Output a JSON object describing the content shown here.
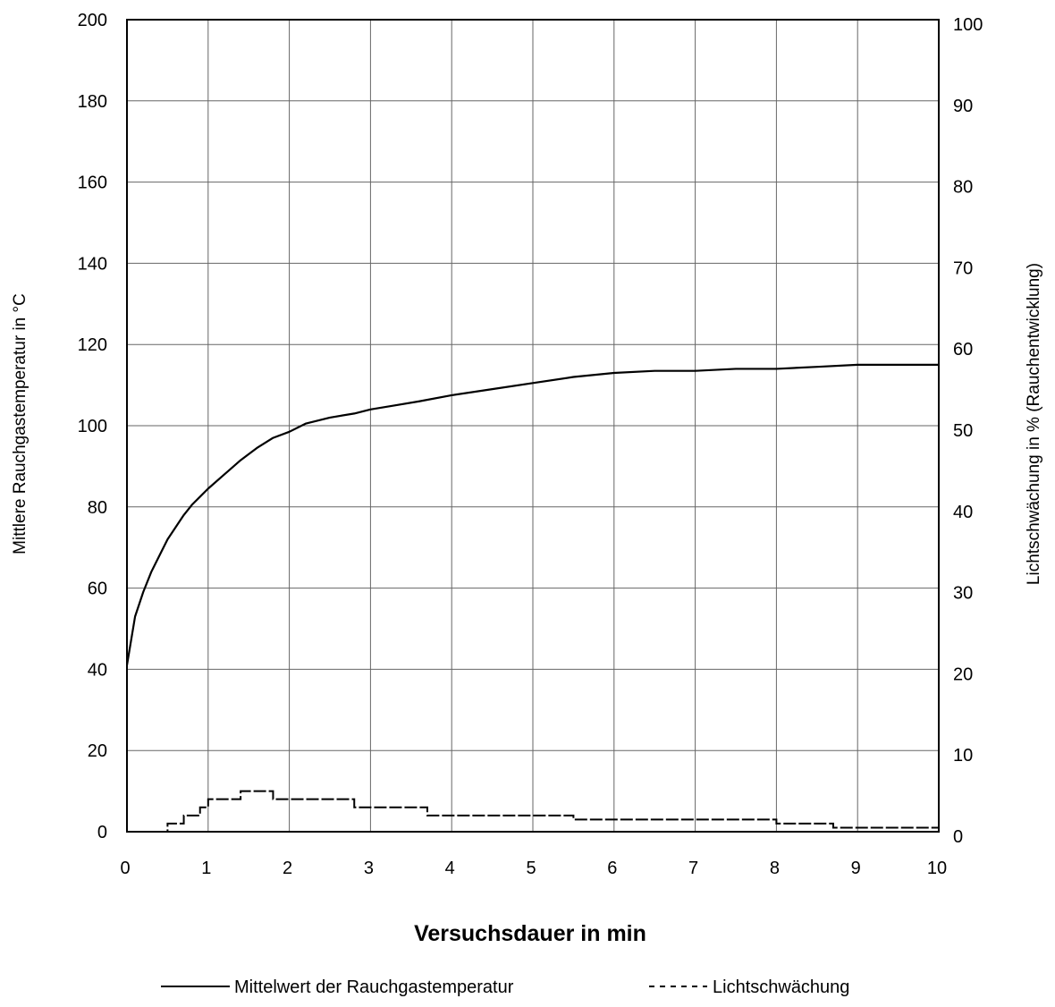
{
  "chart_data": {
    "type": "line",
    "xlabel": "Versuchsdauer in min",
    "ylabel_left": "Mittlere Rauchgastemperatur in °C",
    "ylabel_right": "Lichtschwächung in % (Rauchentwicklung)",
    "xlim": [
      0,
      10
    ],
    "ylim_left": [
      0,
      200
    ],
    "ylim_right": [
      0,
      100
    ],
    "x_ticks": [
      "0",
      "1",
      "2",
      "3",
      "4",
      "5",
      "6",
      "7",
      "8",
      "9",
      "10"
    ],
    "y_left_ticks": [
      "0",
      "20",
      "40",
      "60",
      "80",
      "100",
      "120",
      "140",
      "160",
      "180",
      "200"
    ],
    "y_right_ticks": [
      "0",
      "10",
      "20",
      "30",
      "40",
      "50",
      "60",
      "70",
      "80",
      "90",
      "100"
    ],
    "grid": true,
    "legend_position": "bottom-center",
    "series": [
      {
        "name": "Mittelwert der Rauchgastemperatur",
        "axis": "left",
        "style": "solid",
        "x": [
          0,
          0.1,
          0.2,
          0.3,
          0.4,
          0.5,
          0.6,
          0.7,
          0.8,
          0.9,
          1.0,
          1.2,
          1.4,
          1.6,
          1.8,
          2.0,
          2.2,
          2.5,
          2.8,
          3.0,
          3.3,
          3.6,
          4.0,
          4.5,
          5.0,
          5.5,
          6.0,
          6.5,
          7.0,
          7.5,
          8.0,
          8.5,
          9.0,
          9.5,
          10.0
        ],
        "y": [
          41,
          53,
          59,
          64,
          68,
          72,
          75,
          78,
          80.5,
          82.5,
          84.5,
          88,
          91.5,
          94.5,
          97,
          98.5,
          100.5,
          102,
          103,
          104,
          105,
          106,
          107.5,
          109,
          110.5,
          112,
          113,
          113.5,
          113.5,
          114,
          114,
          114.5,
          115,
          115,
          115
        ]
      },
      {
        "name": "Lichtschwächung",
        "axis": "right",
        "style": "dashed",
        "x": [
          0,
          0.4,
          0.5,
          0.6,
          0.7,
          0.8,
          0.9,
          1.0,
          1.2,
          1.4,
          1.6,
          1.8,
          2.0,
          2.4,
          2.7,
          2.8,
          3.0,
          3.3,
          3.6,
          3.7,
          3.9,
          4.0,
          4.2,
          4.5,
          5.0,
          5.5,
          6.0,
          6.4,
          6.8,
          7.0,
          7.3,
          7.6,
          8.0,
          8.4,
          8.6,
          8.7,
          9.0,
          9.5,
          10.0
        ],
        "y": [
          0,
          0,
          1,
          1,
          2,
          2,
          3,
          4,
          4,
          5,
          5,
          4,
          4,
          4,
          4,
          3,
          3,
          3,
          3,
          2,
          2,
          2,
          2,
          2,
          2,
          1.5,
          1.5,
          1.5,
          1.5,
          1.5,
          1.5,
          1.5,
          1,
          1,
          1,
          0.5,
          0.5,
          0.5,
          0.5
        ]
      }
    ]
  }
}
